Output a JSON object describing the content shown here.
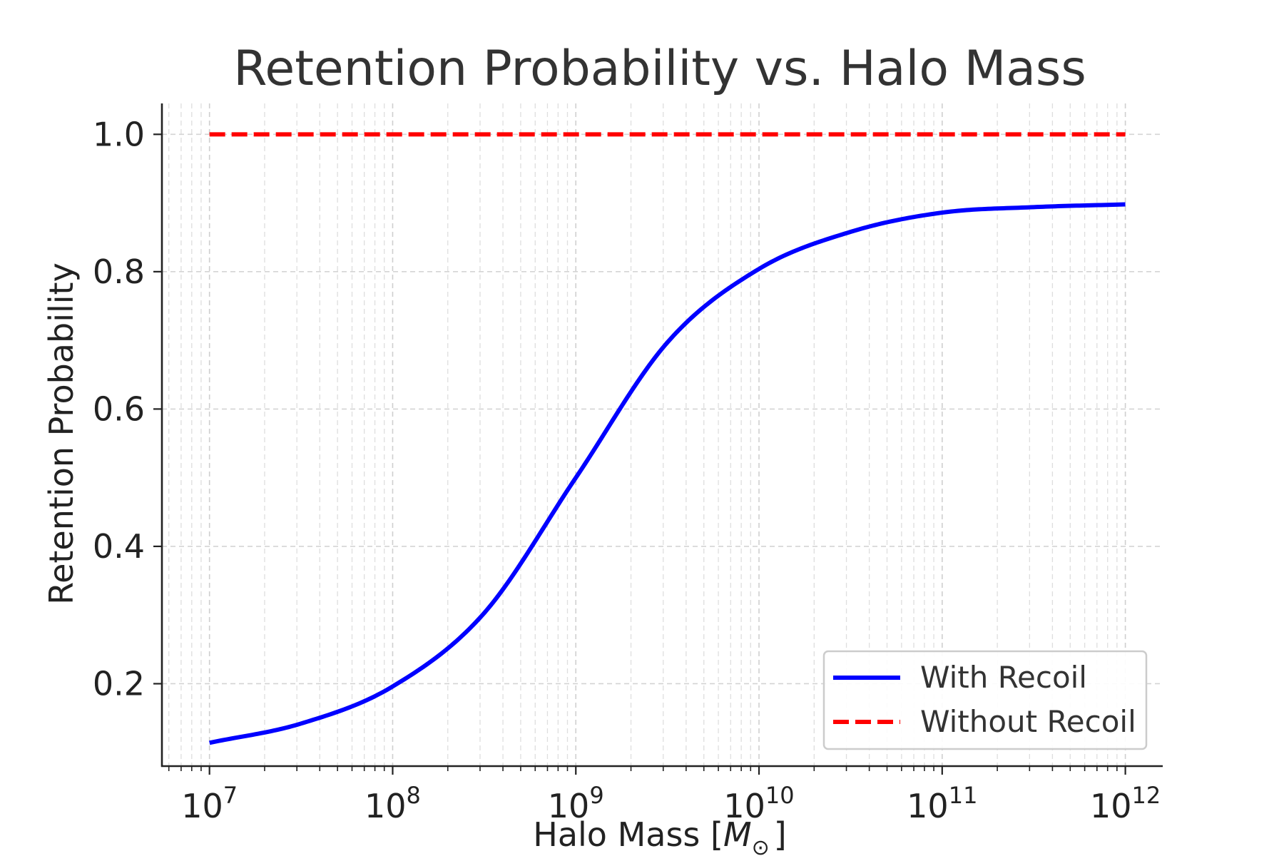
{
  "chart_data": {
    "type": "line",
    "title": "Retention Probability vs. Halo Mass",
    "xlabel": "Halo Mass [",
    "xlabel_symbol": "M",
    "xlabel_subscript": "⊙",
    "xlabel_suffix": "]",
    "ylabel": "Retention Probability",
    "xscale": "log",
    "xlim": [
      5500000.0,
      1600000000000.0
    ],
    "ylim": [
      0.08,
      1.045
    ],
    "grid": true,
    "legend_position": "lower-right",
    "x_ticks": [
      {
        "value": 10000000.0,
        "base": "10",
        "exp": "7"
      },
      {
        "value": 100000000.0,
        "base": "10",
        "exp": "8"
      },
      {
        "value": 1000000000.0,
        "base": "10",
        "exp": "9"
      },
      {
        "value": 10000000000.0,
        "base": "10",
        "exp": "10"
      },
      {
        "value": 100000000000.0,
        "base": "10",
        "exp": "11"
      },
      {
        "value": 1000000000000.0,
        "base": "10",
        "exp": "12"
      }
    ],
    "y_ticks": [
      {
        "value": 0.2,
        "label": "0.2"
      },
      {
        "value": 0.4,
        "label": "0.4"
      },
      {
        "value": 0.6,
        "label": "0.6"
      },
      {
        "value": 0.8,
        "label": "0.8"
      },
      {
        "value": 1.0,
        "label": "1.0"
      }
    ],
    "series": [
      {
        "name": "With Recoil",
        "color": "#0000ff",
        "style": "solid",
        "x": [
          10000000.0,
          31620000.0,
          100000000.0,
          316200000.0,
          1000000000.0,
          3162000000.0,
          10000000000.0,
          31620000000.0,
          100000000000.0,
          316200000000.0,
          1000000000000.0
        ],
        "y": [
          0.114,
          0.142,
          0.196,
          0.303,
          0.5,
          0.697,
          0.804,
          0.858,
          0.886,
          0.894,
          0.898
        ]
      },
      {
        "name": "Without Recoil",
        "color": "#ff0000",
        "style": "dashed",
        "x": [
          10000000.0,
          1000000000000.0
        ],
        "y": [
          1.0,
          1.0
        ]
      }
    ]
  }
}
